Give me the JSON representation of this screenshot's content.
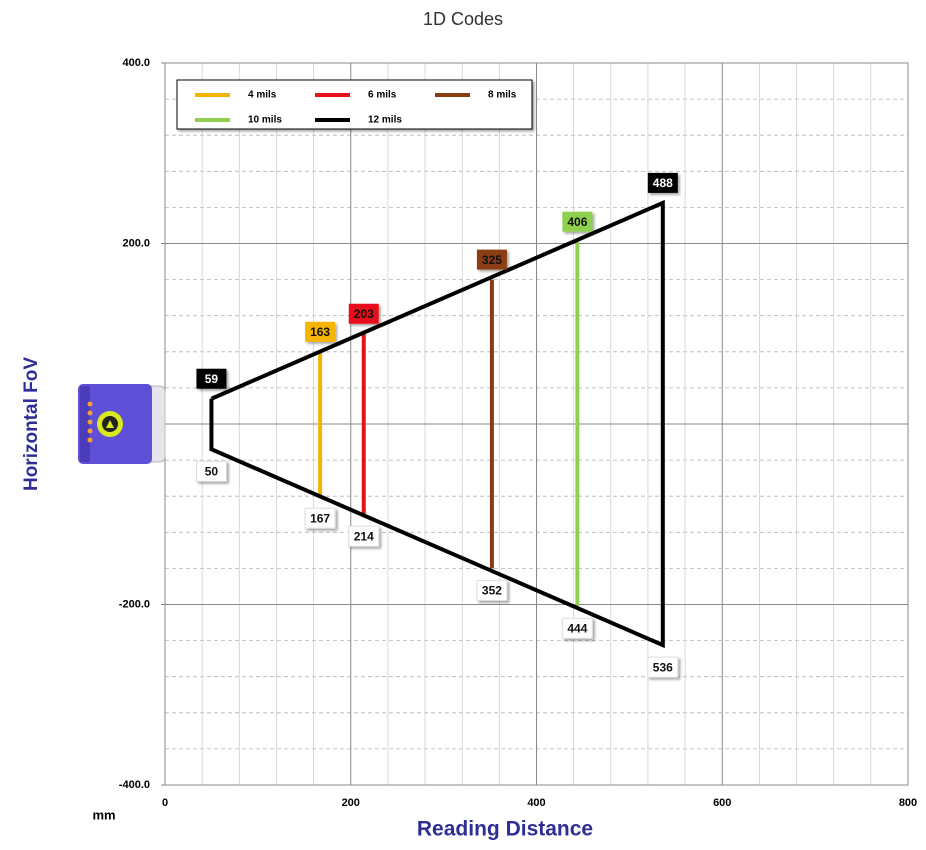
{
  "chart_data": {
    "type": "line",
    "title": "1D Codes",
    "x_label": "Reading Distance",
    "y_label": "Horizontal FoV",
    "unit": "mm",
    "xlim": [
      0,
      800
    ],
    "ylim": [
      -400,
      400
    ],
    "xticks": [
      0,
      200,
      400,
      600,
      800
    ],
    "yticks": [
      {
        "value": 400,
        "label": "400.0"
      },
      {
        "value": 200,
        "label": "200.0"
      },
      {
        "value": -200,
        "label": "-200.0"
      },
      {
        "value": -400,
        "label": "-400.0"
      }
    ],
    "x_minor_grid": [
      40,
      80,
      120,
      160,
      240,
      280,
      320,
      360,
      440,
      480,
      520,
      560,
      640,
      680,
      720,
      760
    ],
    "y_major_grid": [
      -400,
      -200,
      0,
      200,
      400
    ],
    "y_minor_grid": [
      -360,
      -320,
      -280,
      -240,
      -160,
      -120,
      -80,
      -40,
      40,
      80,
      120,
      160,
      240,
      280,
      320,
      360
    ],
    "series": [
      {
        "name": "4 mils",
        "color": "#f5b400",
        "x": [
          167,
          167
        ],
        "values": [
          80,
          -80
        ],
        "point_labels": [
          163,
          167
        ]
      },
      {
        "name": "6 mils",
        "color": "#e8101a",
        "x": [
          214,
          214
        ],
        "values": [
          100,
          -100
        ],
        "point_labels": [
          203,
          214
        ]
      },
      {
        "name": "8 mils",
        "color": "#8b3d12",
        "x": [
          352,
          352
        ],
        "values": [
          160,
          -160
        ],
        "point_labels": [
          325,
          352
        ]
      },
      {
        "name": "10 mils",
        "color": "#8fd14f",
        "x": [
          444,
          444
        ],
        "values": [
          202,
          -202
        ],
        "point_labels": [
          406,
          444
        ]
      },
      {
        "name": "12 mils",
        "color": "#000000",
        "x": [
          50,
          536,
          536,
          50,
          50
        ],
        "values": [
          28,
          245,
          -245,
          -28,
          28
        ],
        "point_labels": [
          59,
          488,
          536,
          50,
          null
        ]
      }
    ]
  }
}
